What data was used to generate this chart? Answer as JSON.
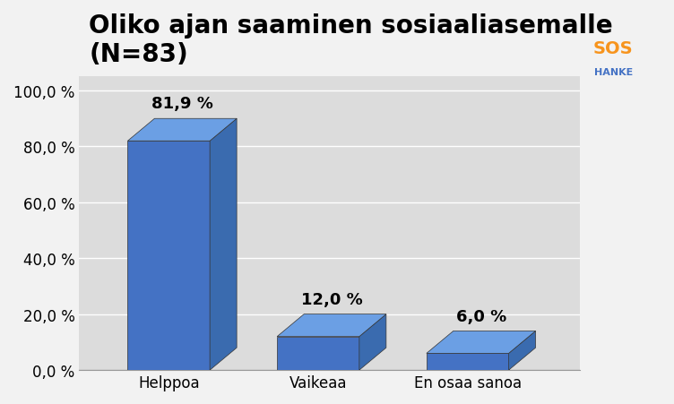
{
  "title": "Oliko ajan saaminen sosiaaliasemalle\n(N=83)",
  "categories": [
    "Helppoa",
    "Vaikeaa",
    "En osaa sanoa"
  ],
  "values": [
    81.9,
    12.0,
    6.0
  ],
  "labels": [
    "81,9 %",
    "12,0 %",
    "6,0 %"
  ],
  "bar_color_front": "#4472C4",
  "bar_color_top": "#5B8ED6",
  "bar_color_side": "#2E5FA3",
  "bar_color_front_dark": "#2E5FA3",
  "background_color": "#F2F2F2",
  "plot_bg_color": "#DCDCDC",
  "ylim": [
    0,
    105
  ],
  "yticks": [
    0,
    20,
    40,
    60,
    80,
    100
  ],
  "ytick_labels": [
    "0,0 %",
    "20,0 %",
    "40,0 %",
    "60,0 %",
    "80,0 %",
    "100,0 %"
  ],
  "title_fontsize": 20,
  "label_fontsize": 13,
  "tick_fontsize": 12,
  "depth": 0.15
}
